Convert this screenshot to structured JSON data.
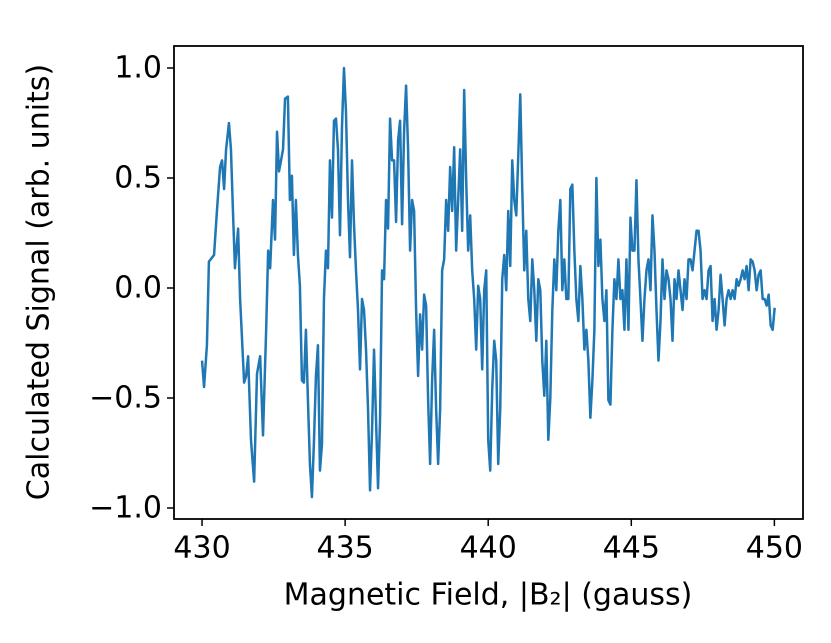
{
  "chart_data": {
    "type": "line",
    "xlabel": "Magnetic Field, |B₂| (gauss)",
    "ylabel": "Calculated Signal (arb. units)",
    "xlim": [
      429.02,
      451.0
    ],
    "ylim": [
      -1.05,
      1.1
    ],
    "xticks": [
      430,
      435,
      440,
      445,
      450
    ],
    "yticks": [
      {
        "value": -1.0,
        "label": "−1.0"
      },
      {
        "value": -0.5,
        "label": "−0.5"
      },
      {
        "value": 0.0,
        "label": "0.0"
      },
      {
        "value": 0.5,
        "label": "0.5"
      },
      {
        "value": 1.0,
        "label": "1.0"
      }
    ],
    "grid": false,
    "x": [
      430.0,
      430.07,
      430.17,
      430.24,
      430.42,
      430.52,
      430.63,
      430.7,
      430.77,
      430.84,
      430.94,
      431.01,
      431.08,
      431.15,
      431.26,
      431.33,
      431.47,
      431.54,
      431.61,
      431.71,
      431.82,
      431.92,
      432.03,
      432.13,
      432.24,
      432.31,
      432.38,
      432.48,
      432.55,
      432.62,
      432.69,
      432.76,
      432.83,
      432.9,
      433.0,
      433.07,
      433.14,
      433.21,
      433.28,
      433.35,
      433.42,
      433.49,
      433.56,
      433.63,
      433.7,
      433.77,
      433.84,
      433.91,
      433.98,
      434.05,
      434.12,
      434.19,
      434.26,
      434.33,
      434.4,
      434.47,
      434.54,
      434.61,
      434.68,
      434.75,
      434.82,
      434.89,
      434.96,
      435.03,
      435.1,
      435.17,
      435.24,
      435.31,
      435.38,
      435.45,
      435.52,
      435.59,
      435.66,
      435.73,
      435.8,
      435.87,
      435.94,
      436.01,
      436.08,
      436.15,
      436.22,
      436.29,
      436.36,
      436.43,
      436.5,
      436.57,
      436.64,
      436.71,
      436.78,
      436.85,
      436.92,
      436.99,
      437.06,
      437.13,
      437.2,
      437.27,
      437.34,
      437.41,
      437.48,
      437.55,
      437.62,
      437.69,
      437.76,
      437.83,
      437.9,
      437.97,
      438.04,
      438.11,
      438.18,
      438.25,
      438.32,
      438.39,
      438.46,
      438.53,
      438.6,
      438.67,
      438.74,
      438.81,
      438.88,
      438.95,
      439.02,
      439.09,
      439.16,
      439.23,
      439.3,
      439.37,
      439.44,
      439.51,
      439.58,
      439.65,
      439.72,
      439.79,
      439.86,
      439.93,
      440.0,
      440.07,
      440.14,
      440.21,
      440.28,
      440.35,
      440.42,
      440.49,
      440.56,
      440.63,
      440.7,
      440.77,
      440.84,
      440.91,
      440.98,
      441.05,
      441.12,
      441.19,
      441.26,
      441.33,
      441.4,
      441.47,
      441.54,
      441.61,
      441.68,
      441.75,
      441.82,
      441.89,
      441.96,
      442.03,
      442.1,
      442.17,
      442.24,
      442.31,
      442.38,
      442.45,
      442.52,
      442.59,
      442.66,
      442.73,
      442.8,
      442.87,
      442.94,
      443.01,
      443.08,
      443.15,
      443.22,
      443.29,
      443.36,
      443.43,
      443.5,
      443.57,
      443.64,
      443.71,
      443.78,
      443.85,
      443.92,
      443.99,
      444.06,
      444.13,
      444.2,
      444.27,
      444.34,
      444.41,
      444.48,
      444.55,
      444.62,
      444.69,
      444.76,
      444.83,
      444.9,
      444.97,
      445.04,
      445.11,
      445.18,
      445.25,
      445.32,
      445.39,
      445.46,
      445.53,
      445.6,
      445.67,
      445.74,
      445.81,
      445.88,
      445.95,
      446.02,
      446.09,
      446.16,
      446.23,
      446.3,
      446.37,
      446.44,
      446.51,
      446.58,
      446.65,
      446.72,
      446.79,
      446.86,
      446.93,
      447.0,
      447.07,
      447.14,
      447.21,
      447.28,
      447.35,
      447.42,
      447.49,
      447.56,
      447.63,
      447.7,
      447.77,
      447.84,
      447.91,
      447.98,
      448.05,
      448.12,
      448.19,
      448.26,
      448.33,
      448.4,
      448.47,
      448.54,
      448.61,
      448.68,
      448.75,
      448.82,
      448.89,
      448.96,
      449.03,
      449.1,
      449.17,
      449.24,
      449.31,
      449.38,
      449.45,
      449.52,
      449.59,
      449.66,
      449.73,
      449.8,
      449.87,
      449.94,
      450.01
    ],
    "series": [
      {
        "color": "#1f77b4",
        "values": [
          -0.33,
          -0.45,
          -0.26,
          0.12,
          0.15,
          0.35,
          0.55,
          0.58,
          0.45,
          0.63,
          0.75,
          0.63,
          0.35,
          0.09,
          0.27,
          -0.05,
          -0.43,
          -0.4,
          -0.31,
          -0.69,
          -0.88,
          -0.39,
          -0.31,
          -0.67,
          -0.19,
          0.17,
          0.09,
          0.4,
          0.22,
          0.71,
          0.53,
          0.58,
          0.63,
          0.86,
          0.87,
          0.4,
          0.51,
          0.15,
          0.4,
          0.15,
          0.01,
          -0.42,
          -0.43,
          -0.19,
          -0.51,
          -0.8,
          -0.95,
          -0.7,
          -0.4,
          -0.26,
          -0.83,
          -0.71,
          -0.05,
          0.17,
          0.09,
          0.58,
          0.32,
          0.76,
          0.77,
          0.63,
          0.24,
          0.73,
          1.0,
          0.8,
          0.4,
          0.14,
          0.58,
          0.29,
          0.08,
          -0.1,
          -0.37,
          -0.05,
          -0.1,
          -0.28,
          -0.55,
          -0.92,
          -0.65,
          -0.28,
          -0.6,
          -0.91,
          -0.6,
          0.08,
          0.04,
          0.4,
          0.27,
          0.77,
          0.58,
          0.58,
          0.3,
          0.67,
          0.76,
          0.29,
          0.71,
          0.92,
          0.63,
          0.17,
          0.4,
          0.35,
          -0.1,
          -0.4,
          -0.12,
          -0.28,
          -0.03,
          -0.08,
          -0.51,
          -0.8,
          -0.42,
          -0.19,
          -0.55,
          -0.8,
          -0.55,
          0.08,
          0.13,
          0.4,
          0.26,
          0.55,
          0.35,
          0.64,
          0.17,
          0.4,
          0.63,
          0.26,
          0.9,
          0.49,
          0.17,
          0.33,
          0.08,
          -0.05,
          -0.28,
          0.01,
          -0.05,
          -0.37,
          -0.01,
          0.08,
          -0.69,
          -0.83,
          -0.46,
          -0.24,
          -0.33,
          -0.8,
          -0.55,
          0.04,
          0.15,
          -0.01,
          0.35,
          0.1,
          0.58,
          0.4,
          0.33,
          0.6,
          0.88,
          0.45,
          0.08,
          0.26,
          -0.05,
          -0.15,
          0.13,
          -0.01,
          -0.24,
          0.04,
          -0.01,
          -0.33,
          -0.49,
          -0.24,
          -0.69,
          -0.5,
          -0.1,
          0.13,
          -0.01,
          0.26,
          0.4,
          -0.01,
          0.13,
          -0.05,
          -0.05,
          0.45,
          0.47,
          0.17,
          -0.05,
          -0.15,
          0.1,
          -0.05,
          -0.28,
          -0.19,
          -0.33,
          -0.59,
          -0.42,
          -0.19,
          0.5,
          0.1,
          0.22,
          -0.05,
          -0.15,
          -0.01,
          -0.51,
          -0.53,
          -0.19,
          0.04,
          -0.05,
          0.13,
          -0.05,
          -0.01,
          -0.19,
          0.13,
          -0.19,
          0.32,
          0.17,
          0.17,
          0.49,
          0.13,
          -0.05,
          -0.24,
          -0.05,
          0.08,
          0.13,
          -0.01,
          0.33,
          0.17,
          -0.1,
          -0.33,
          -0.15,
          0.13,
          -0.05,
          0.08,
          0.04,
          -0.05,
          -0.24,
          0.04,
          -0.05,
          0.08,
          -0.01,
          -0.1,
          0.04,
          -0.05,
          0.13,
          0.13,
          0.08,
          0.17,
          0.26,
          0.26,
          0.17,
          -0.05,
          -0.01,
          -0.05,
          0.08,
          0.1,
          -0.15,
          -0.05,
          -0.19,
          -0.1,
          0.06,
          -0.05,
          -0.17,
          -0.05,
          -0.01,
          -0.05,
          -0.01,
          -0.05,
          0.04,
          0.01,
          0.04,
          0.08,
          0.04,
          0.1,
          -0.01,
          0.13,
          0.12,
          0.08,
          -0.01,
          0.06,
          0.08,
          -0.05,
          -0.05,
          -0.08,
          -0.03,
          -0.17,
          -0.19,
          -0.09
        ]
      }
    ]
  }
}
